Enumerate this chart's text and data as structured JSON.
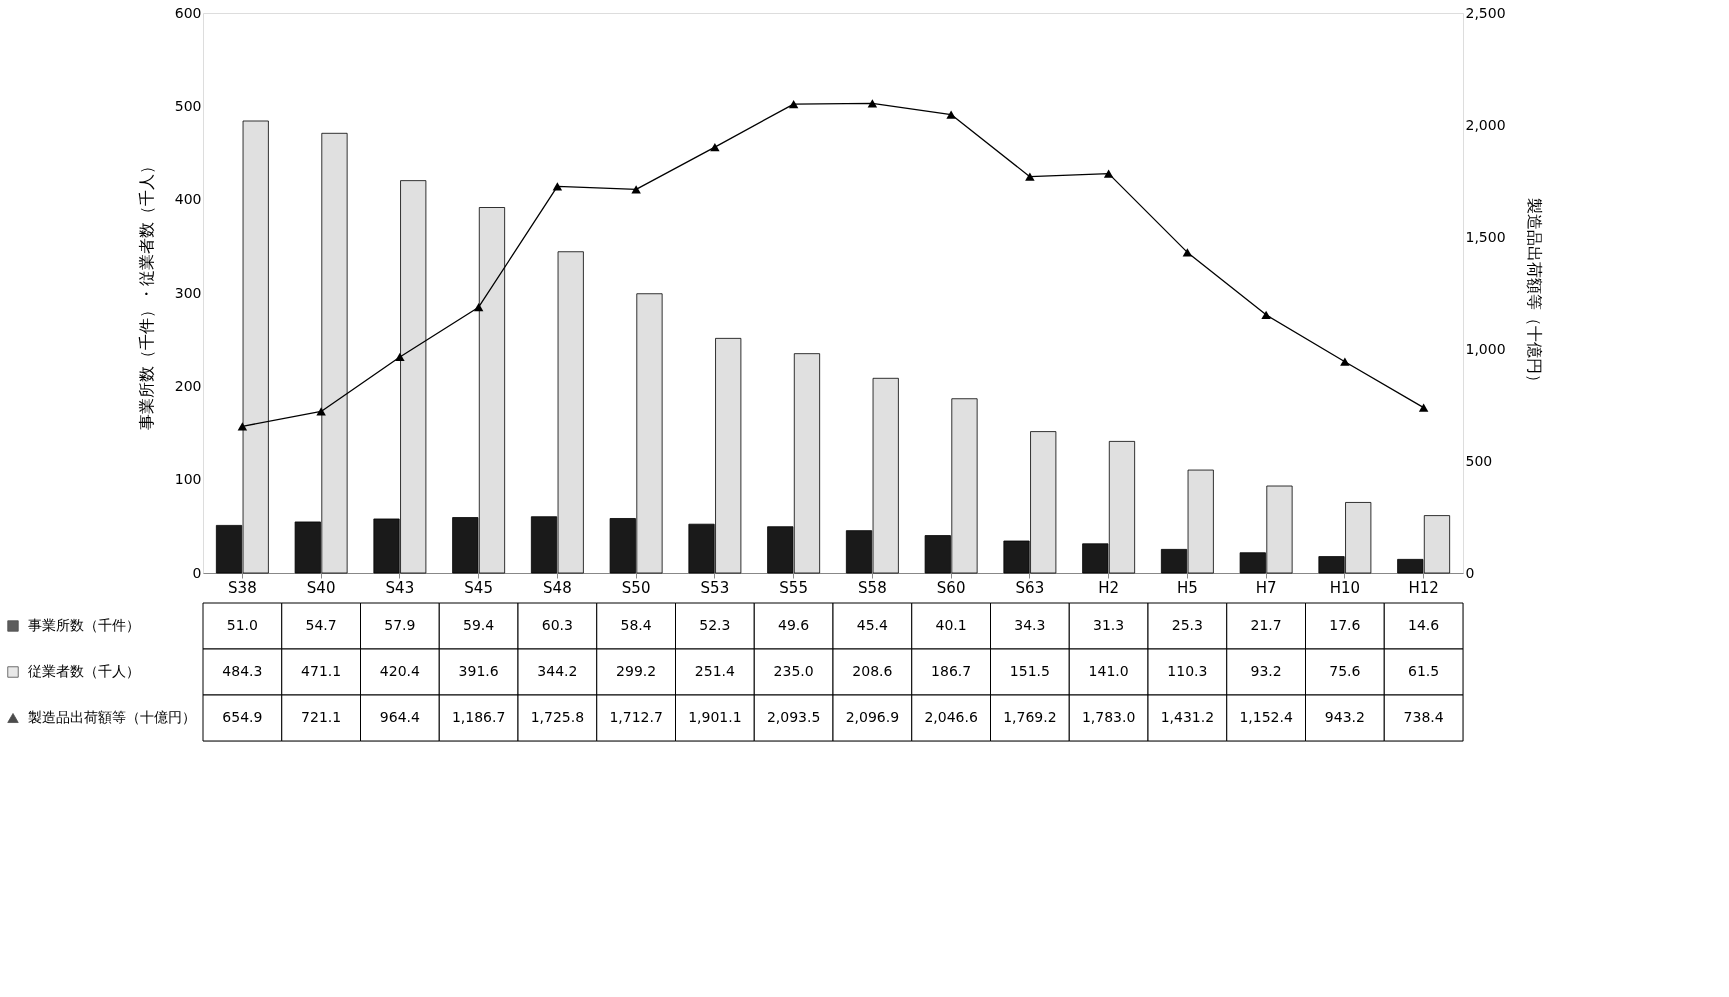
{
  "chart_data": {
    "type": "bar",
    "categories": [
      "S38",
      "S40",
      "S43",
      "S45",
      "S48",
      "S50",
      "S53",
      "S55",
      "S58",
      "S60",
      "S63",
      "H2",
      "H5",
      "H7",
      "H10",
      "H12"
    ],
    "ylabel": "事業所数（千件）・従業者数（千人）",
    "y2label": "製造品出荷額等（十億円）",
    "ylim": [
      0,
      600
    ],
    "yticks": [
      0,
      100,
      200,
      300,
      400,
      500,
      600
    ],
    "y2lim": [
      0,
      2500
    ],
    "y2ticks": [
      0,
      500,
      {
        "value": 1000,
        "label": "1,000"
      },
      {
        "value": 1500,
        "label": "1,500"
      },
      {
        "value": 2000,
        "label": "2,000"
      },
      {
        "value": 2500,
        "label": "2,500"
      }
    ],
    "grid": false,
    "legend": "bottom left",
    "series": [
      {
        "name": "事業所数（千件）",
        "color": "#1a1a1a",
        "values": [
          51.0,
          54.7,
          57.9,
          59.4,
          60.3,
          58.4,
          52.3,
          49.6,
          45.4,
          40.1,
          34.3,
          31.3,
          25.3,
          21.7,
          17.6,
          14.6
        ],
        "value_labels": [
          "51.0",
          "54.7",
          "57.9",
          "59.4",
          "60.3",
          "58.4",
          "52.3",
          "49.6",
          "45.4",
          "40.1",
          "34.3",
          "31.3",
          "25.3",
          "21.7",
          "17.6",
          "14.6"
        ]
      },
      {
        "name": "従業者数（千人）",
        "color": "#e0e0e0",
        "values": [
          484.3,
          471.1,
          420.4,
          391.6,
          344.2,
          299.2,
          251.4,
          235.0,
          208.6,
          186.7,
          151.5,
          141.0,
          110.3,
          93.2,
          75.6,
          61.5
        ],
        "value_labels": [
          "484.3",
          "471.1",
          "420.4",
          "391.6",
          "344.2",
          "299.2",
          "251.4",
          "235.0",
          "208.6",
          "186.7",
          "151.5",
          "141.0",
          "110.3",
          "93.2",
          "75.6",
          "61.5"
        ]
      },
      {
        "name": "製造品出荷額等（十億円）",
        "type": "line",
        "axis": "y2",
        "color": "#000000",
        "marker": "triangle",
        "line_style": "solid",
        "values": [
          654.9,
          721.1,
          964.4,
          1186.7,
          1725.8,
          1712.7,
          1901.1,
          2093.5,
          2096.9,
          2046.6,
          1769.2,
          1783.0,
          1431.2,
          1152.4,
          943.2,
          738.4
        ],
        "value_labels": [
          "654.9",
          "721.1",
          "964.4",
          "1,186.7",
          "1,725.8",
          "1,712.7",
          "1,901.1",
          "2,093.5",
          "2,096.9",
          "2,046.6",
          "1,769.2",
          "1,783.0",
          "1,431.2",
          "1,152.4",
          "943.2",
          "738.4"
        ]
      }
    ]
  }
}
